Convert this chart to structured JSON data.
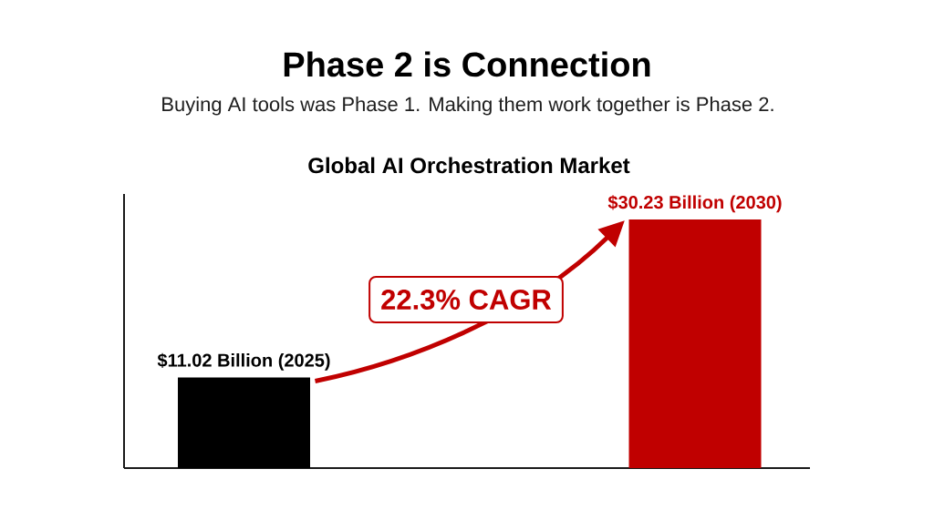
{
  "chart_data": {
    "type": "bar",
    "title": "Phase 2 is Connection",
    "subtitle": "Buying AI tools was Phase 1. Making them work together is Phase 2.",
    "annotations": [
      "Global AI Orchestration Market",
      "22.3% CAGR"
    ],
    "categories": [
      null,
      null
    ],
    "values": [
      11.02,
      30.23
    ],
    "value_labels": [
      "$11.02 Billion (2025)",
      "$30.23 Billion (2030)"
    ],
    "colors": [
      "#000000",
      "#c00000"
    ]
  }
}
